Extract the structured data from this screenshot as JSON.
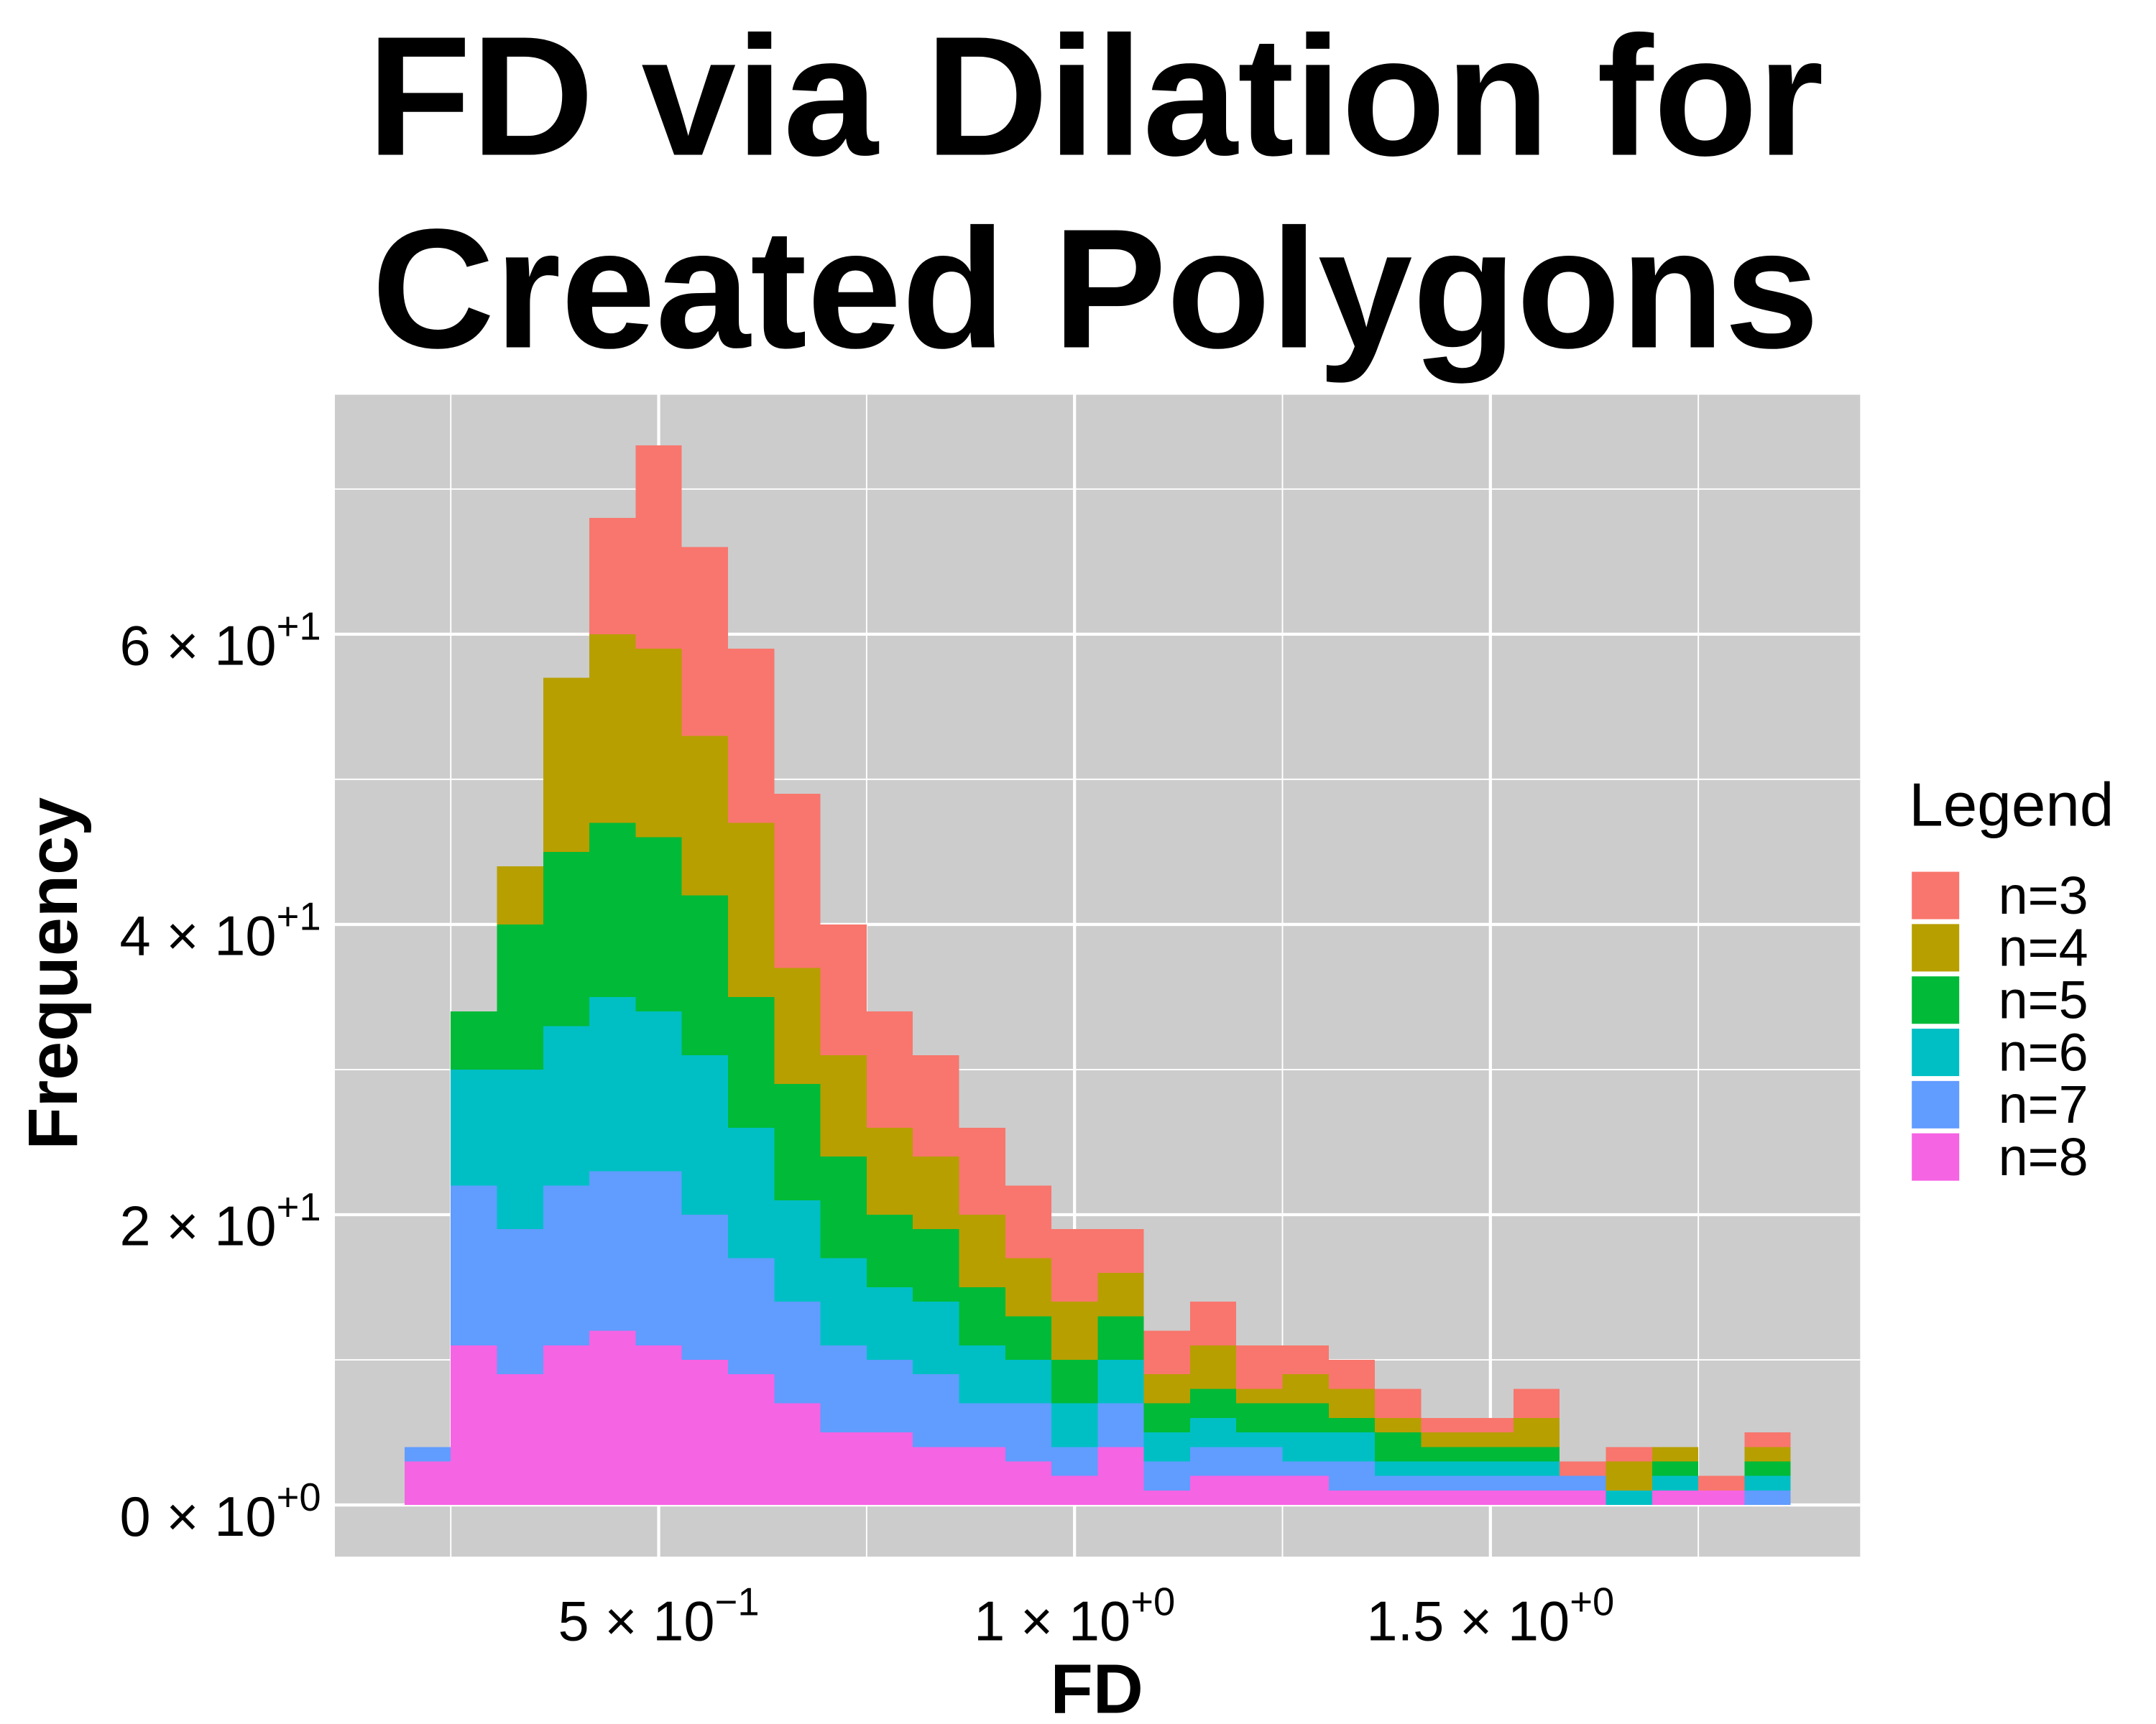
{
  "chart_data": {
    "type": "histogram",
    "stacked": true,
    "title": "FD via Dilation for Created Polygons",
    "x_label": "FD",
    "y_label": "Frequency",
    "legend_title": "Legend",
    "legend_position": "right",
    "grid": true,
    "bins": [
      0.1944,
      0.25,
      0.3056,
      0.3611,
      0.4167,
      0.4722,
      0.5278,
      0.5833,
      0.6389,
      0.6944,
      0.75,
      0.8056,
      0.8611,
      0.9167,
      0.9722,
      1.0278,
      1.0833,
      1.1389,
      1.1944,
      1.25,
      1.3056,
      1.3611,
      1.4167,
      1.4722,
      1.5278,
      1.5833,
      1.6389,
      1.6944,
      1.75,
      1.8056,
      1.8611
    ],
    "series": [
      {
        "name": "n=3",
        "color": "#F8766D",
        "values": [
          0,
          0,
          0,
          0,
          8,
          14,
          13,
          12,
          12,
          9,
          8,
          7,
          6,
          5,
          5,
          3,
          3,
          3,
          3,
          2,
          2,
          2,
          1,
          1,
          2,
          1,
          1,
          0,
          1,
          1
        ]
      },
      {
        "name": "n=4",
        "color": "#B79F00",
        "values": [
          0,
          0,
          4,
          12,
          13,
          13,
          11,
          12,
          8,
          7,
          6,
          5,
          5,
          4,
          4,
          3,
          2,
          3,
          1,
          2,
          2,
          1,
          1,
          1,
          2,
          0,
          2,
          1,
          0,
          1
        ]
      },
      {
        "name": "n=5",
        "color": "#00BA38",
        "values": [
          0,
          4,
          10,
          12,
          12,
          12,
          11,
          9,
          8,
          7,
          5,
          5,
          4,
          3,
          3,
          3,
          2,
          2,
          2,
          2,
          1,
          2,
          1,
          1,
          1,
          0,
          0,
          1,
          0,
          1
        ]
      },
      {
        "name": "n=6",
        "color": "#00BFC4",
        "values": [
          0,
          8,
          11,
          11,
          12,
          11,
          11,
          9,
          7,
          6,
          5,
          5,
          4,
          3,
          3,
          3,
          2,
          2,
          1,
          2,
          2,
          1,
          1,
          1,
          1,
          0,
          1,
          1,
          0,
          1
        ]
      },
      {
        "name": "n=7",
        "color": "#619CFF",
        "values": [
          1,
          11,
          10,
          11,
          11,
          12,
          10,
          8,
          7,
          6,
          5,
          5,
          3,
          4,
          2,
          3,
          2,
          2,
          2,
          1,
          2,
          1,
          1,
          1,
          1,
          1,
          0,
          0,
          0,
          1
        ]
      },
      {
        "name": "n=8",
        "color": "#F564E3",
        "values": [
          3,
          11,
          9,
          11,
          12,
          11,
          10,
          9,
          7,
          5,
          5,
          4,
          4,
          3,
          2,
          4,
          1,
          2,
          2,
          2,
          1,
          1,
          1,
          1,
          1,
          1,
          0,
          1,
          1,
          0
        ]
      }
    ],
    "xlim": [
      0.1107,
      1.9446
    ],
    "ylim": [
      -3.56,
      76.5
    ],
    "xticks": [
      {
        "value": 0.5,
        "label": "5 × 10",
        "exponent": "−1"
      },
      {
        "value": 1,
        "label": "1 × 10",
        "exponent": "+0"
      },
      {
        "value": 1.5,
        "label": "1.5 × 10",
        "exponent": "+0"
      }
    ],
    "yticks": [
      {
        "value": 0,
        "label": "0 × 10",
        "exponent": "+0"
      },
      {
        "value": 20,
        "label": "2 × 10",
        "exponent": "+1"
      },
      {
        "value": 40,
        "label": "4 × 10",
        "exponent": "+1"
      },
      {
        "value": 60,
        "label": "6 × 10",
        "exponent": "+1"
      }
    ],
    "minor_xticks": [
      0.25,
      0.75,
      1.25,
      1.75
    ],
    "minor_yticks": [
      10,
      30,
      50,
      70
    ],
    "panel_color": "#CCCCCC",
    "grid_color": "#FFFFFF"
  }
}
